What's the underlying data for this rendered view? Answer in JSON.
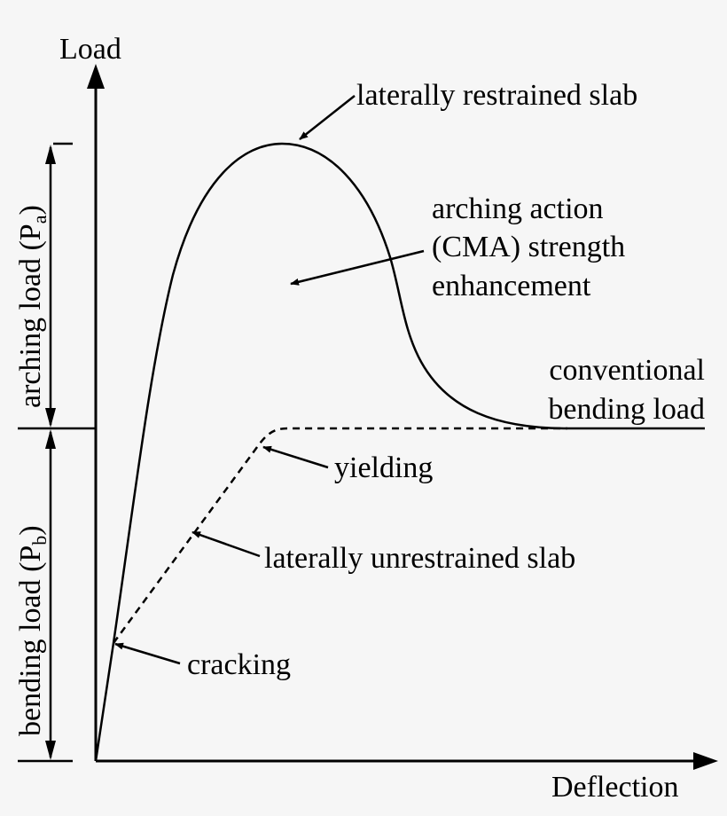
{
  "axes": {
    "y_label": "Load",
    "x_label": "Deflection"
  },
  "left_labels": {
    "arching": {
      "text": "arching load (P",
      "subscript": "a",
      "close": ")"
    },
    "bending": {
      "text": "bending load (P",
      "subscript": "b",
      "close": ")"
    }
  },
  "annotations": {
    "restrained": "laterally restrained slab",
    "cma_line1": "arching action",
    "cma_line2": "(CMA) strength",
    "cma_line3": "enhancement",
    "conventional_line1": "conventional",
    "conventional_line2": "bending load",
    "yielding": "yielding",
    "unrestrained": "laterally unrestrained slab",
    "cracking": "cracking"
  },
  "colors": {
    "background": "#f6f6f6",
    "ink": "#000000"
  }
}
